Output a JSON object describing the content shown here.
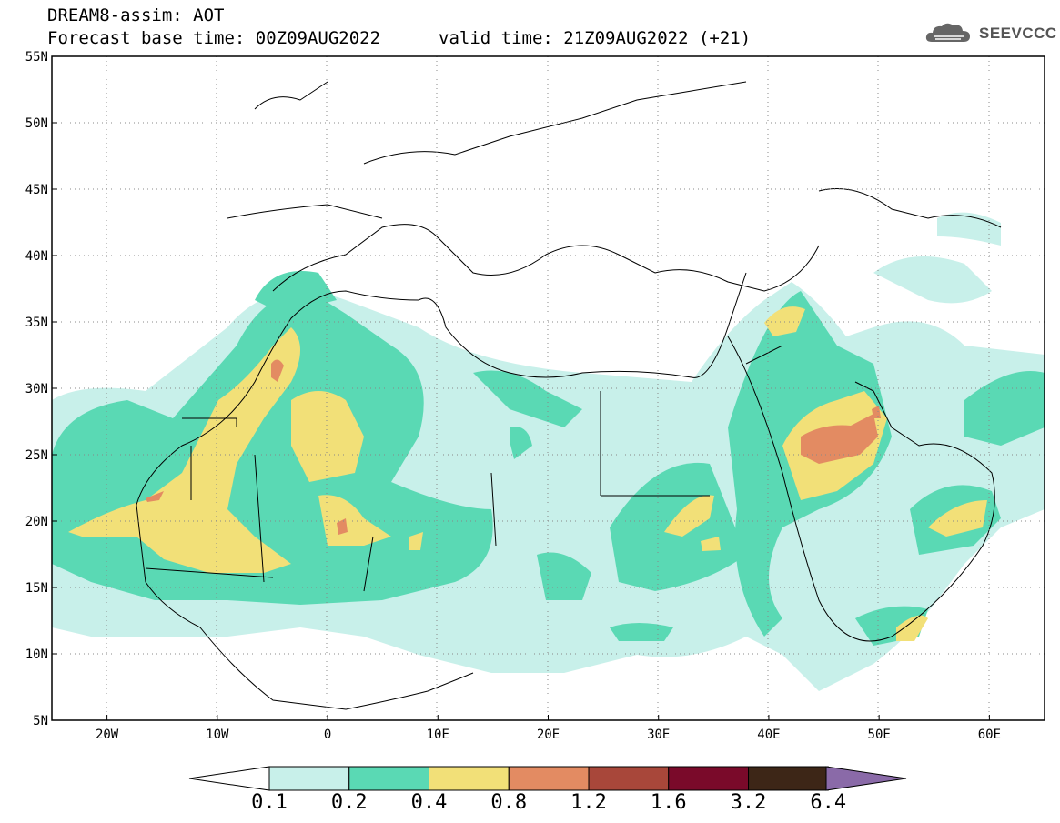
{
  "header": {
    "title": "DREAM8-assim: AOT",
    "base_time": "Forecast base time: 00Z09AUG2022",
    "valid_time": "valid time: 21Z09AUG2022 (+21)"
  },
  "logo": {
    "text": "SEEVCCC",
    "icon": "cloud-icon"
  },
  "map": {
    "lon_range": [
      -25,
      65
    ],
    "lat_range": [
      5,
      55
    ],
    "lon_ticks": [
      "20W",
      "10W",
      "0",
      "10E",
      "20E",
      "30E",
      "40E",
      "50E",
      "60E"
    ],
    "lat_ticks": [
      "5N",
      "10N",
      "15N",
      "20N",
      "25N",
      "30N",
      "35N",
      "40N",
      "45N",
      "50N",
      "55N"
    ],
    "grid": "dotted"
  },
  "colorbar": {
    "labels": [
      "0.1",
      "0.2",
      "0.4",
      "0.8",
      "1.2",
      "1.6",
      "3.2",
      "6.4"
    ],
    "colors": [
      "#c8f0ea",
      "#5ad9b4",
      "#f2e078",
      "#e38b62",
      "#a8473a",
      "#7a0a2a",
      "#3d2617",
      "#8a6aa8"
    ]
  }
}
